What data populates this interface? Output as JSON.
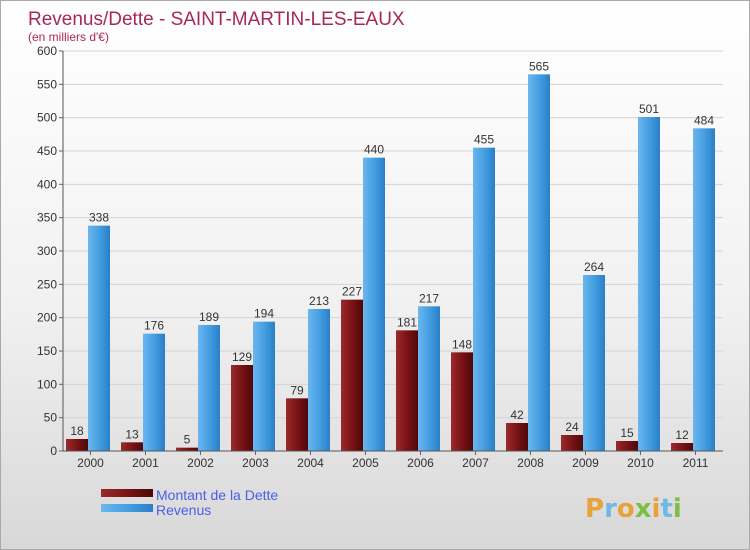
{
  "chart_data": {
    "type": "bar",
    "title": "Revenus/Dette - SAINT-MARTIN-LES-EAUX",
    "subtitle": "(en milliers d'€)",
    "categories": [
      "2000",
      "2001",
      "2002",
      "2003",
      "2004",
      "2005",
      "2006",
      "2007",
      "2008",
      "2009",
      "2010",
      "2011"
    ],
    "series": [
      {
        "name": "Montant de la Dette",
        "color": "#7a1315",
        "values": [
          18,
          13,
          5,
          129,
          79,
          227,
          181,
          148,
          42,
          24,
          15,
          12
        ]
      },
      {
        "name": "Revenus",
        "color": "#3f9be0",
        "values": [
          338,
          176,
          189,
          194,
          213,
          440,
          217,
          455,
          565,
          264,
          501,
          484
        ]
      }
    ],
    "ylim": [
      0,
      600
    ],
    "yticks": [
      0,
      50,
      100,
      150,
      200,
      250,
      300,
      350,
      400,
      450,
      500,
      550,
      600
    ],
    "grid": true,
    "legend_position": "bottom-left"
  },
  "logo": {
    "letters": [
      {
        "ch": "P",
        "color": "#e8a23a"
      },
      {
        "ch": "r",
        "color": "#6fb7e6"
      },
      {
        "ch": "o",
        "color": "#e8a23a"
      },
      {
        "ch": "x",
        "color": "#7cbf45"
      },
      {
        "ch": "i",
        "color": "#e8a23a"
      },
      {
        "ch": "t",
        "color": "#6fb7e6"
      },
      {
        "ch": "i",
        "color": "#7cbf45"
      }
    ]
  }
}
